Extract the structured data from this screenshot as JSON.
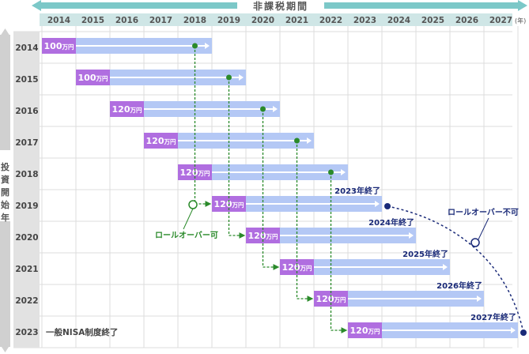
{
  "header": {
    "title": "非課税期間",
    "year_unit": "(年)",
    "years": [
      "2014",
      "2015",
      "2016",
      "2017",
      "2018",
      "2019",
      "2020",
      "2021",
      "2022",
      "2023",
      "2024",
      "2025",
      "2026",
      "2027"
    ]
  },
  "side": {
    "title_chars": [
      "投",
      "資",
      "開",
      "始",
      "年"
    ],
    "years": [
      "2014",
      "2015",
      "2016",
      "2017",
      "2018",
      "2019",
      "2020",
      "2021",
      "2022",
      "2023"
    ]
  },
  "rows": [
    {
      "start_year": "2014",
      "amount": "100",
      "unit": "万円"
    },
    {
      "start_year": "2015",
      "amount": "100",
      "unit": "万円"
    },
    {
      "start_year": "2016",
      "amount": "120",
      "unit": "万円"
    },
    {
      "start_year": "2017",
      "amount": "120",
      "unit": "万円"
    },
    {
      "start_year": "2018",
      "amount": "120",
      "unit": "万円"
    },
    {
      "start_year": "2019",
      "amount": "120",
      "unit": "万円",
      "end_label": "2023年終了"
    },
    {
      "start_year": "2020",
      "amount": "120",
      "unit": "万円",
      "end_label": "2024年終了"
    },
    {
      "start_year": "2021",
      "amount": "120",
      "unit": "万円",
      "end_label": "2025年終了"
    },
    {
      "start_year": "2022",
      "amount": "120",
      "unit": "万円",
      "end_label": "2026年終了"
    },
    {
      "start_year": "2023",
      "amount": "120",
      "unit": "万円",
      "end_label": "2027年終了"
    }
  ],
  "labels": {
    "rollover_ok": "ロールオーバー可",
    "rollover_ng": "ロールオーバー不可",
    "nisa_end": "一般NISA制度終了"
  },
  "colors": {
    "year_header_bg": "#cfe6e6",
    "title_bar": "#7cc8c8",
    "side_bar": "#d0d0d0",
    "period_bar": "#b4c8f5",
    "amount_box": "#b06ee0",
    "rollover_green": "#2a8a2a",
    "end_navy": "#1a2a78"
  }
}
